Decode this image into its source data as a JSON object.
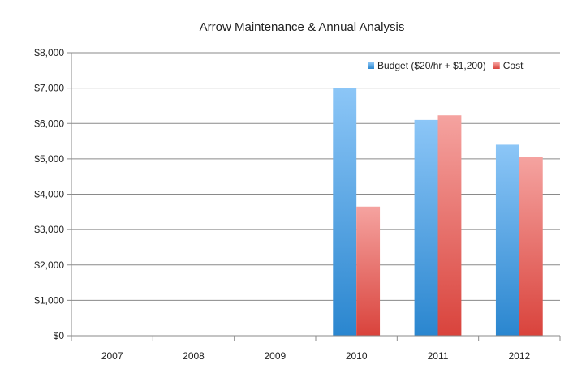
{
  "chart_data": {
    "type": "bar",
    "title": "Arrow Maintenance & Annual Analysis",
    "xlabel": "",
    "ylabel": "",
    "categories": [
      "2007",
      "2008",
      "2009",
      "2010",
      "2011",
      "2012"
    ],
    "series": [
      {
        "name": "Budget ($20/hr + $1,200)",
        "values": [
          null,
          null,
          null,
          7000,
          6100,
          5400
        ],
        "color": "#5aa7e6"
      },
      {
        "name": "Cost",
        "values": [
          null,
          null,
          null,
          3650,
          6230,
          5050
        ],
        "color": "#e8655f"
      }
    ],
    "ylim": [
      0,
      8000
    ],
    "y_ticks": [
      0,
      1000,
      2000,
      3000,
      4000,
      5000,
      6000,
      7000,
      8000
    ],
    "y_tick_labels": [
      "$0",
      "$1,000",
      "$2,000",
      "$3,000",
      "$4,000",
      "$5,000",
      "$6,000",
      "$7,000",
      "$8,000"
    ],
    "grid": true,
    "legend_position": "top-right"
  }
}
